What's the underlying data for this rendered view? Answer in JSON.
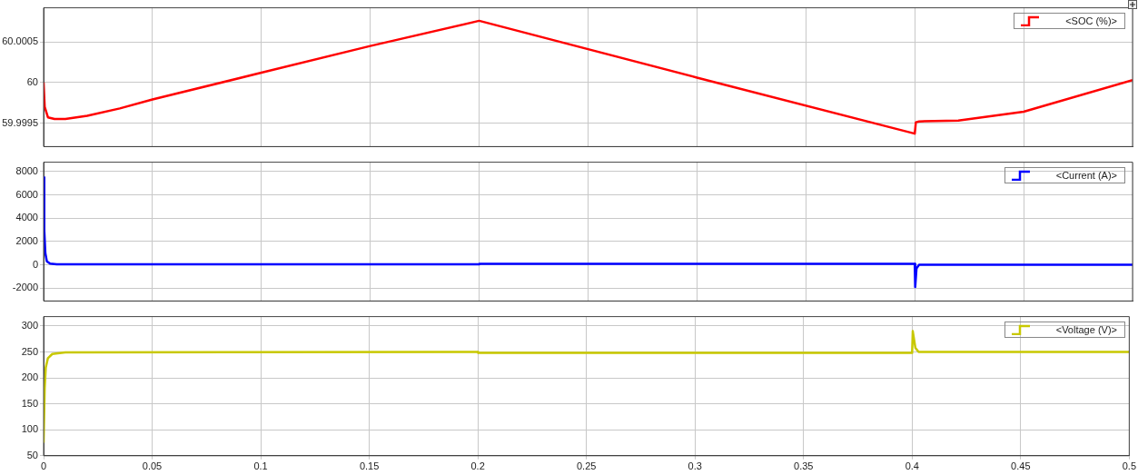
{
  "chart_data": [
    {
      "type": "line",
      "x": [
        0,
        0.0005,
        0.002,
        0.005,
        0.01,
        0.02,
        0.035,
        0.05,
        0.1,
        0.15,
        0.2,
        0.3,
        0.4,
        0.4005,
        0.402,
        0.42,
        0.45,
        0.5
      ],
      "series": [
        {
          "name": "<SOC (%)>",
          "color": "#ff0000",
          "values": [
            60,
            59.9997,
            59.99957,
            59.99955,
            59.99955,
            59.99959,
            59.99968,
            59.99979,
            60.00012,
            60.00045,
            60.00076,
            60.00006,
            59.99937,
            59.99951,
            59.99952,
            59.99953,
            59.99964,
            60.00003
          ]
        }
      ],
      "xlim": [
        0,
        0.5
      ],
      "xticks": [
        0,
        0.05,
        0.1,
        0.15,
        0.2,
        0.25,
        0.3,
        0.35,
        0.4,
        0.45,
        0.5
      ],
      "ylim": [
        59.99921,
        60.00092
      ],
      "yticks": [
        59.9995,
        60,
        60.0005
      ],
      "grid": true,
      "legend": "top right",
      "marker": "none",
      "tick_labels": "y"
    },
    {
      "type": "line",
      "x": [
        0,
        0.0003,
        0.0008,
        0.0015,
        0.003,
        0.006,
        0.2,
        0.2001,
        0.4,
        0.4002,
        0.4008,
        0.402,
        0.5
      ],
      "series": [
        {
          "name": "<Current (A)>",
          "color": "#0000ff",
          "values": [
            7500,
            3000,
            1000,
            300,
            100,
            40,
            40,
            80,
            80,
            -1900,
            -300,
            0,
            0
          ]
        }
      ],
      "xlim": [
        0,
        0.5
      ],
      "xticks": [
        0,
        0.05,
        0.1,
        0.15,
        0.2,
        0.25,
        0.3,
        0.35,
        0.4,
        0.45,
        0.5
      ],
      "ylim": [
        -3100,
        8800
      ],
      "yticks": [
        -2000,
        0,
        2000,
        4000,
        6000,
        8000
      ],
      "grid": true,
      "legend": "top right",
      "marker": "none",
      "tick_labels": "y"
    },
    {
      "type": "line",
      "x": [
        0,
        0.0005,
        0.001,
        0.002,
        0.004,
        0.01,
        0.2,
        0.2001,
        0.4,
        0.4003,
        0.4015,
        0.403,
        0.5
      ],
      "series": [
        {
          "name": "<Voltage (V)>",
          "color": "#c8c800",
          "values": [
            75,
            180,
            220,
            238,
            246,
            249,
            250,
            248,
            248,
            290,
            258,
            250,
            250
          ]
        }
      ],
      "xlim": [
        0,
        0.5
      ],
      "xticks": [
        0,
        0.05,
        0.1,
        0.15,
        0.2,
        0.25,
        0.3,
        0.35,
        0.4,
        0.45,
        0.5
      ],
      "ylim": [
        50,
        318
      ],
      "yticks": [
        50,
        100,
        150,
        200,
        250,
        300
      ],
      "grid": true,
      "legend": "top right",
      "marker": "none"
    }
  ]
}
